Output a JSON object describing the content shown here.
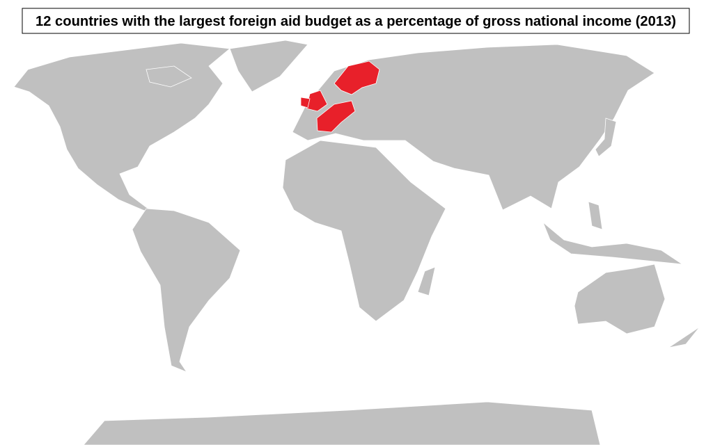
{
  "title": "12 countries with the largest foreign aid budget as a percentage of gross national income (2013)"
}
